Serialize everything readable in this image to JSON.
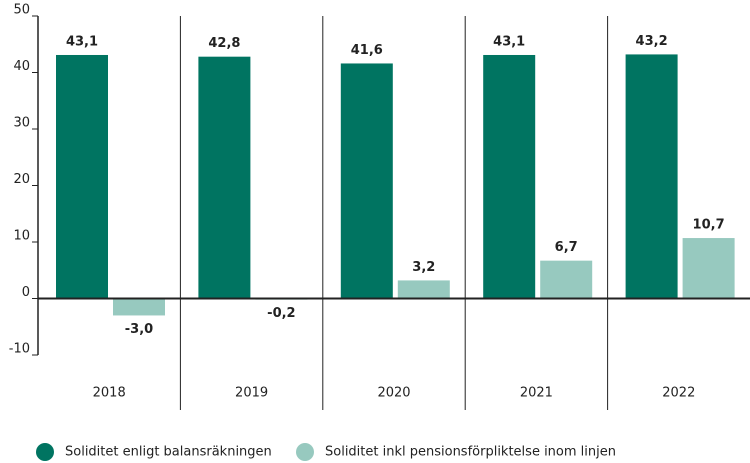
{
  "chart_data": {
    "type": "bar",
    "categories": [
      "2018",
      "2019",
      "2020",
      "2021",
      "2022"
    ],
    "series": [
      {
        "name": "Soliditet enligt balansräkningen",
        "color": "#007461",
        "values": [
          43.1,
          42.8,
          41.6,
          43.1,
          43.2
        ],
        "value_labels": [
          "43,1",
          "42,8",
          "41,6",
          "43,1",
          "43,2"
        ]
      },
      {
        "name": "Soliditet inkl pensionsförpliktelse inom linjen",
        "color": "#97c9bf",
        "values": [
          -3.0,
          -0.2,
          3.2,
          6.7,
          10.7
        ],
        "value_labels": [
          "-3,0",
          "-0,2",
          "3,2",
          "6,7",
          "10,7"
        ]
      }
    ],
    "ylim": [
      -10,
      50
    ],
    "yticks": [
      -10,
      0,
      10,
      20,
      30,
      40,
      50
    ]
  }
}
